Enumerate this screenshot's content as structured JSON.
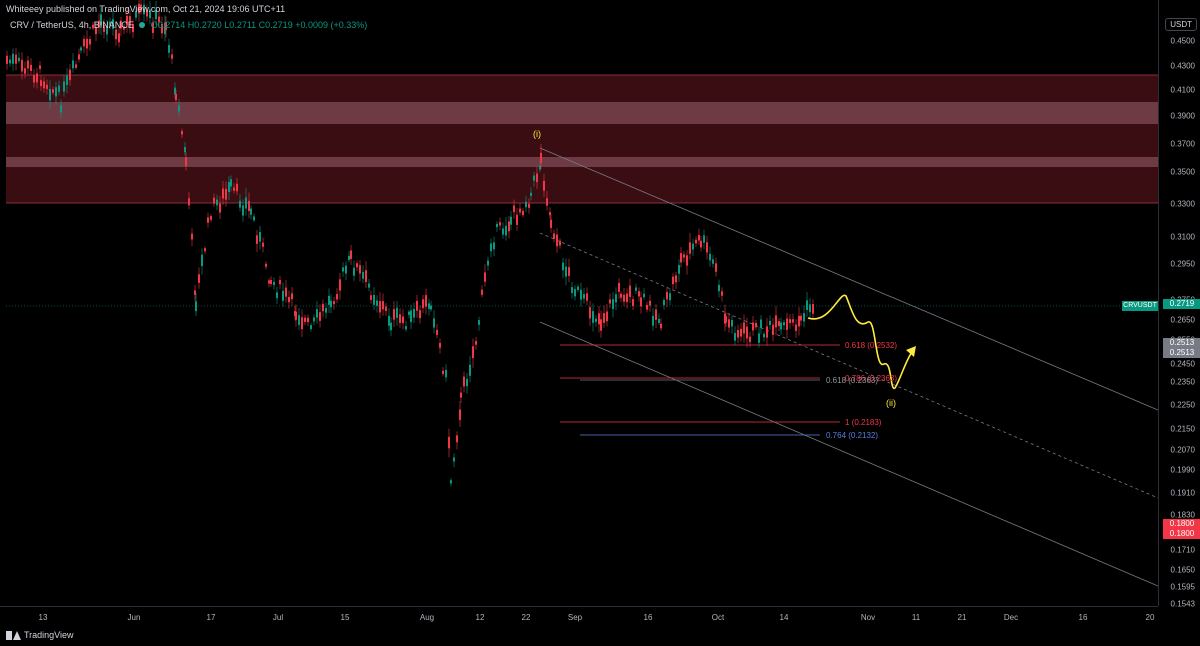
{
  "header": {
    "published": "Whiteeey published on TradingView.com, Oct 21, 2024 19:06 UTC+11"
  },
  "legend": {
    "symbol": "CRV / TetherUS, 4h, BINANCE",
    "ohlc": "O0.2714 H0.2720 L0.2711 C0.2719 +0.0009 (+0.33%)"
  },
  "price_axis": {
    "currency": "USDT",
    "ticks": [
      "0.4500",
      "0.4300",
      "0.4100",
      "0.3900",
      "0.3700",
      "0.3500",
      "0.3300",
      "0.3100",
      "0.2950",
      "0.2750",
      "0.2650",
      "0.2550",
      "0.2450",
      "0.2350",
      "0.2250",
      "0.2150",
      "0.2070",
      "0.1990",
      "0.1910",
      "0.1830",
      "0.1770",
      "0.1710",
      "0.1650",
      "0.1595",
      "0.1543"
    ],
    "symbol_tag": "CRVUSDT",
    "last_price": "0.2719",
    "badge_grey_1": "0.2513",
    "badge_grey_2": "0.2513",
    "badge_red_1": "0.1800",
    "badge_red_2": "0.1800"
  },
  "time_axis": {
    "ticks": [
      "13",
      "Jun",
      "17",
      "Jul",
      "15",
      "Aug",
      "12",
      "22",
      "Sep",
      "16",
      "Oct",
      "14",
      "Nov",
      "11",
      "21",
      "Dec",
      "16",
      "20"
    ]
  },
  "annotations": {
    "wave_i": "(i)",
    "wave_ii": "(ii)",
    "fib_0618_upper": "0.618 (0.2532)",
    "fib_0786": "0.786 (0.2363)",
    "fib_0618_lower": "0.618 (0.2363)",
    "fib_1": "1 (0.2183)",
    "fib_0764": "0.764 (0.2132)"
  },
  "colors": {
    "bull": "#089981",
    "bear": "#f23645",
    "zone_dark": "#3a0d12",
    "zone_light": "#6e3a44",
    "wave_path": "#ffeb3b"
  },
  "footer": {
    "brand": "TradingView"
  }
}
